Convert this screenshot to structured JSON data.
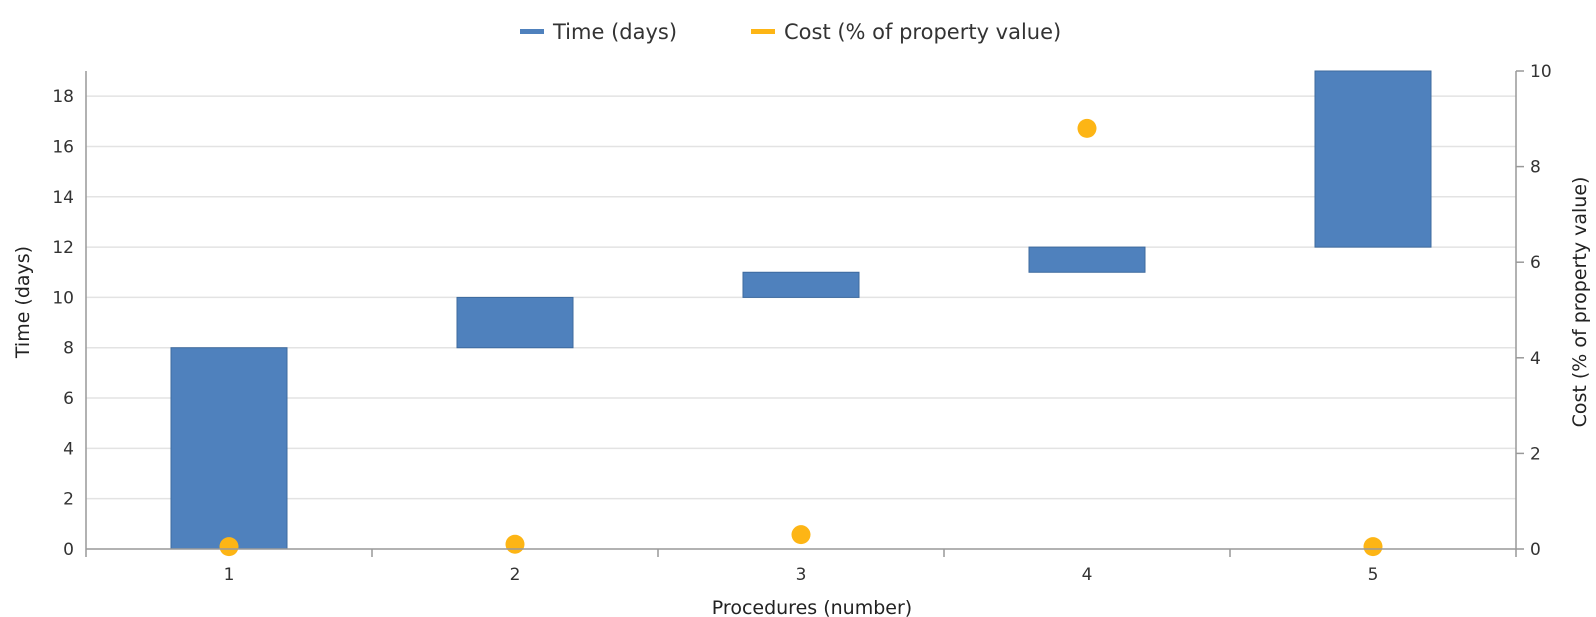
{
  "chart_data": {
    "type": "bar",
    "subtype": "waterfall-with-scatter",
    "categories": [
      "1",
      "2",
      "3",
      "4",
      "5"
    ],
    "xlabel": "Procedures (number)",
    "ylabel": "Time (days)",
    "y2label": "Cost (% of property value)",
    "ylim": [
      0,
      19
    ],
    "yticks": [
      0,
      2,
      4,
      6,
      8,
      10,
      12,
      14,
      16,
      18
    ],
    "y2lim": [
      0,
      10
    ],
    "y2ticks": [
      0,
      2,
      4,
      6,
      8,
      10
    ],
    "grid": true,
    "legend_position": "top-center",
    "series": [
      {
        "name": "Time (days)",
        "axis": "left",
        "kind": "floating-bar",
        "color": "#4f81bd",
        "start": [
          0,
          8,
          10,
          11,
          12
        ],
        "end": [
          8,
          10,
          11,
          12,
          19
        ]
      },
      {
        "name": "Cost (% of property value)",
        "axis": "right",
        "kind": "scatter",
        "color": "#fdb515",
        "values": [
          0.05,
          0.1,
          0.3,
          8.8,
          0.05
        ]
      }
    ]
  }
}
